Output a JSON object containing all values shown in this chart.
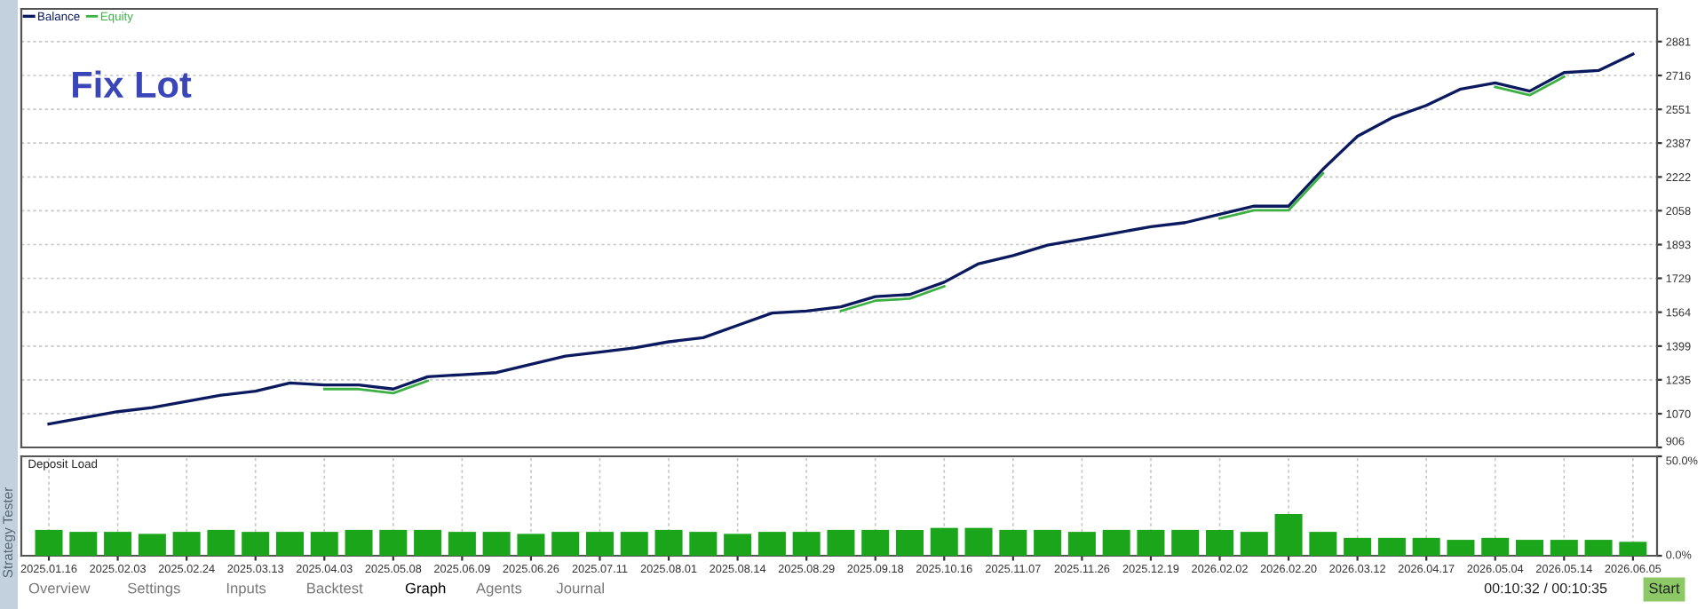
{
  "chart_data": [
    {
      "type": "line",
      "title": "Fix Lot",
      "legend": "top left",
      "grid": true,
      "tick_labels": "y",
      "categories": [
        null,
        null,
        null,
        null,
        null,
        null,
        null,
        null,
        null,
        null,
        null,
        null,
        null,
        null,
        null,
        null,
        null,
        null,
        null,
        null,
        null,
        null,
        null,
        null,
        null,
        null,
        null,
        null,
        null,
        null,
        null,
        null,
        null,
        null,
        null,
        null,
        null,
        null,
        null,
        null,
        null,
        null,
        null,
        null,
        null,
        null,
        null
      ],
      "series": [
        {
          "name": "Balance",
          "color": "#0b1a5e",
          "values": [
            1020,
            1050,
            1080,
            1100,
            1130,
            1160,
            1180,
            1220,
            1210,
            1210,
            1190,
            1250,
            1260,
            1270,
            1310,
            1350,
            1370,
            1390,
            1420,
            1440,
            1500,
            1560,
            1570,
            1590,
            1640,
            1650,
            1710,
            1800,
            1840,
            1890,
            1920,
            1950,
            1980,
            2000,
            2040,
            2080,
            2080,
            2260,
            2420,
            2510,
            2570,
            2650,
            2680,
            2640,
            2730,
            2740,
            2820
          ]
        },
        {
          "name": "Equity",
          "color": "#3cb043",
          "values": [
            null,
            null,
            null,
            null,
            null,
            null,
            null,
            null,
            1190,
            1190,
            1170,
            1230,
            null,
            null,
            null,
            null,
            null,
            null,
            null,
            null,
            null,
            null,
            null,
            1570,
            1620,
            1630,
            1690,
            null,
            null,
            null,
            null,
            null,
            null,
            null,
            2020,
            2060,
            2060,
            2240,
            null,
            null,
            null,
            null,
            2660,
            2620,
            2710,
            null,
            null
          ]
        }
      ],
      "ylim": [
        906,
        3040
      ],
      "yticks": [
        906,
        1070,
        1235,
        1399,
        1564,
        1729,
        1893,
        2058,
        2222,
        2387,
        2551,
        2716,
        2881
      ]
    },
    {
      "type": "bar",
      "title": "Deposit Load",
      "grid": "x",
      "categories": [
        "2025.01.16",
        null,
        "2025.02.03",
        null,
        "2025.02.24",
        null,
        "2025.03.13",
        null,
        "2025.04.03",
        null,
        "2025.05.08",
        null,
        "2025.06.09",
        null,
        "2025.06.26",
        null,
        "2025.07.11",
        null,
        "2025.08.01",
        null,
        "2025.08.14",
        null,
        "2025.08.29",
        null,
        "2025.09.18",
        null,
        "2025.10.16",
        null,
        "2025.11.07",
        null,
        "2025.11.26",
        null,
        "2025.12.19",
        null,
        "2026.02.02",
        null,
        "2026.02.20",
        null,
        "2026.03.12",
        null,
        "2026.04.17",
        null,
        "2026.05.04",
        null,
        "2026.05.14",
        null,
        "2026.06.05"
      ],
      "series": [
        {
          "color": "#1aa51a",
          "values": [
            13,
            12,
            12,
            11,
            12,
            13,
            12,
            12,
            12,
            13,
            13,
            13,
            12,
            12,
            11,
            12,
            12,
            12,
            13,
            12,
            11,
            12,
            12,
            13,
            13,
            13,
            14,
            14,
            13,
            13,
            12,
            13,
            13,
            13,
            13,
            12,
            21,
            12,
            9,
            9,
            9,
            8,
            9,
            8,
            8,
            8,
            7
          ]
        }
      ],
      "ylim": [
        0,
        50
      ],
      "yticks": [
        {
          "value": 0,
          "label": "0.0%"
        },
        {
          "value": 50,
          "label": "50.0%"
        }
      ],
      "annotations": [
        "Strategy Tester",
        "Overview",
        "Settings",
        "Inputs",
        "Backtest",
        "Graph",
        "Agents",
        "Journal",
        "00:10:32 / 00:10:35",
        "Start"
      ]
    }
  ]
}
